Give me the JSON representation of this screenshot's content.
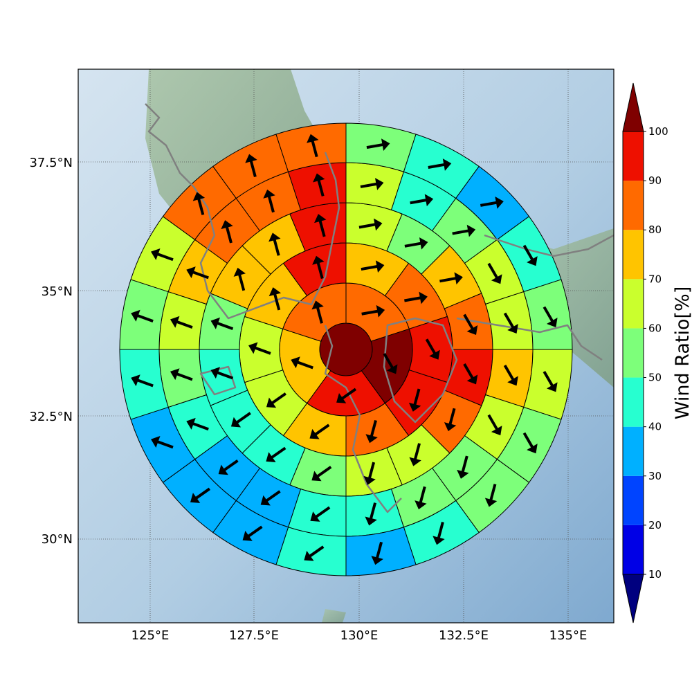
{
  "chart_data": {
    "type": "polar-sector-map",
    "title": "",
    "lon_ticks": [
      "125°E",
      "127.5°E",
      "130°E",
      "132.5°E",
      "135°E"
    ],
    "lat_ticks": [
      "37.5°N",
      "35°N",
      "32.5°N",
      "30°N"
    ],
    "colorbar": {
      "label": "Wind Ratio[%]",
      "tick_values": [
        10,
        20,
        30,
        40,
        50,
        60,
        70,
        80,
        90,
        100
      ],
      "bins": [
        {
          "range": "<10",
          "color": "#00007f"
        },
        {
          "range": "10-20",
          "color": "#0000e6"
        },
        {
          "range": "20-30",
          "color": "#0044ff"
        },
        {
          "range": "30-40",
          "color": "#00b0ff"
        },
        {
          "range": "40-50",
          "color": "#27ffd0"
        },
        {
          "range": "50-60",
          "color": "#7dff7a"
        },
        {
          "range": "60-70",
          "color": "#caff2d"
        },
        {
          "range": "70-80",
          "color": "#ffc400"
        },
        {
          "range": "80-90",
          "color": "#ff6a00"
        },
        {
          "range": "90-100",
          "color": "#ee1000"
        },
        {
          "range": ">100",
          "color": "#7f0000"
        }
      ]
    },
    "center_bin": 10,
    "rings": [
      {
        "ring": 1,
        "bins_clockwise_from_north": [
          8,
          10,
          9,
          7,
          8
        ]
      },
      {
        "ring": 2,
        "bins_clockwise_from_north": [
          7,
          8,
          9,
          9,
          8,
          7,
          6,
          6,
          7,
          9
        ]
      },
      {
        "ring": 3,
        "bins_clockwise_from_north": [
          6,
          5,
          7,
          8,
          9,
          8,
          6,
          6,
          5,
          4,
          4,
          4,
          5,
          7,
          7,
          9
        ]
      },
      {
        "ring": 4,
        "bins_clockwise_from_north": [
          6,
          4,
          5,
          6,
          6,
          7,
          6,
          5,
          5,
          4,
          4,
          3,
          3,
          4,
          5,
          6,
          7,
          8,
          8,
          9
        ]
      },
      {
        "ring": 5,
        "bins_clockwise_from_north": [
          5,
          4,
          3,
          4,
          5,
          6,
          5,
          5,
          4,
          3,
          4,
          3,
          3,
          3,
          4,
          5,
          6,
          8,
          8,
          8
        ]
      },
      {
        "ring": 6,
        "bins_clockwise_from_north": [
          5,
          4,
          3,
          4,
          5,
          5,
          5,
          4,
          3,
          3,
          3,
          3,
          2,
          3,
          4,
          5,
          5,
          7,
          8,
          7
        ]
      }
    ],
    "arrow_note_directions": "wind direction arrows point roughly northeast/north on west side, east on northeast, south on east side, southwest on south"
  }
}
